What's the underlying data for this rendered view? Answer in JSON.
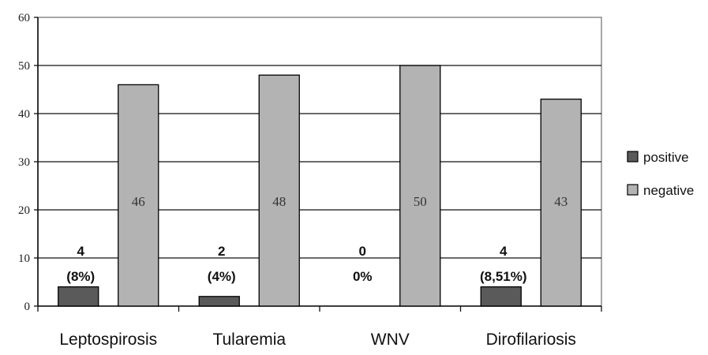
{
  "chart_data": {
    "type": "bar",
    "categories": [
      "Leptospirosis",
      "Tularemia",
      "WNV",
      "Dirofilariosis"
    ],
    "series": [
      {
        "name": "positive",
        "color": "#5a5a5a",
        "values": [
          4,
          2,
          0,
          4
        ],
        "labels": [
          [
            "4",
            "(8%)"
          ],
          [
            "2",
            "(4%)"
          ],
          [
            "0",
            "0%"
          ],
          [
            "4",
            "(8,51%)"
          ]
        ]
      },
      {
        "name": "negative",
        "color": "#b3b3b3",
        "values": [
          46,
          48,
          50,
          43
        ],
        "labels": [
          [
            "46"
          ],
          [
            "48"
          ],
          [
            "50"
          ],
          [
            "43"
          ]
        ]
      }
    ],
    "ylim": [
      0,
      60
    ],
    "yticks": [
      "0",
      "10",
      "20",
      "30",
      "40",
      "50",
      "60"
    ],
    "grid": true,
    "legend_position": "right",
    "title": "",
    "xlabel": "",
    "ylabel": ""
  }
}
